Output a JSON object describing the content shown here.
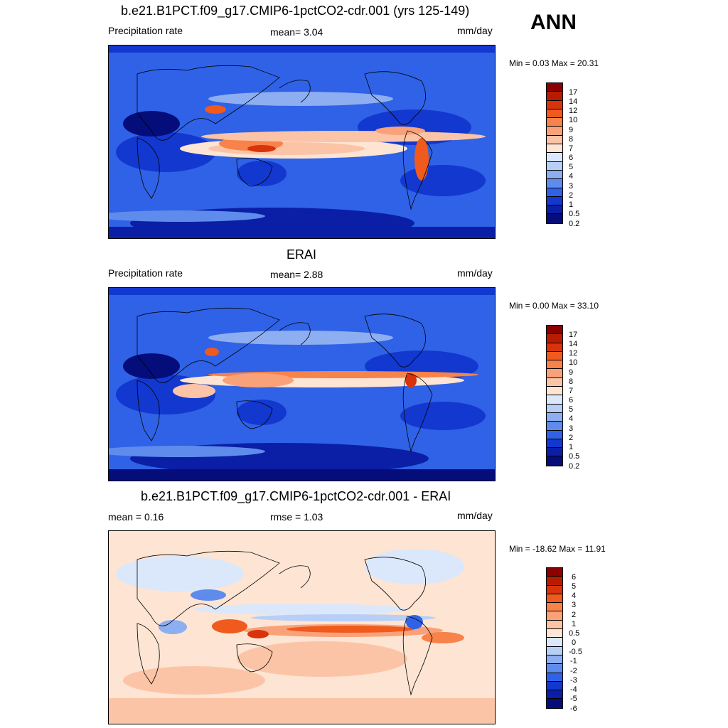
{
  "season": "ANN",
  "panels": [
    {
      "title": "b.e21.B1PCT.f09_g17.CMIP6-1pctCO2-cdr.001 (yrs 125-149)",
      "left_label": "Precipitation rate",
      "center_label": "mean=   3.04",
      "right_label": "mm/day",
      "minmax": "Min =   0.03 Max =  20.31"
    },
    {
      "title": "ERAI",
      "left_label": "Precipitation rate",
      "center_label": "mean=   2.88",
      "right_label": "mm/day",
      "minmax": "Min =   0.00 Max =  33.10"
    },
    {
      "title": "b.e21.B1PCT.f09_g17.CMIP6-1pctCO2-cdr.001 - ERAI",
      "left_label": "mean =   0.16",
      "center_label": "rmse =   1.03",
      "right_label": "mm/day",
      "minmax": "Min = -18.62 Max =  11.91"
    }
  ],
  "colorbars": {
    "precip": {
      "labels": [
        "17",
        "14",
        "12",
        "10",
        "9",
        "8",
        "7",
        "6",
        "5",
        "4",
        "3",
        "2",
        "1",
        "0.5",
        "0.2"
      ],
      "colors": [
        "#8b0000",
        "#b71c00",
        "#d8330a",
        "#f05a1c",
        "#f7824a",
        "#f9a27a",
        "#fcc4a6",
        "#fde4d3",
        "#dbe8fb",
        "#b7cff6",
        "#8daef0",
        "#5f8cec",
        "#2f62e6",
        "#1238d0",
        "#0a1fa6",
        "#040d7a"
      ]
    },
    "diff": {
      "labels": [
        "6",
        "5",
        "4",
        "3",
        "2",
        "1",
        "0.5",
        "0",
        "-0.5",
        "-1",
        "-2",
        "-3",
        "-4",
        "-5",
        "-6"
      ],
      "colors": [
        "#8b0000",
        "#b71c00",
        "#d8330a",
        "#f05a1c",
        "#f7824a",
        "#f9a27a",
        "#fcc4a6",
        "#fde4d3",
        "#dbe8fb",
        "#b7cff6",
        "#8daef0",
        "#5f8cec",
        "#2f62e6",
        "#1238d0",
        "#0a1fa6",
        "#040d7a"
      ]
    }
  }
}
